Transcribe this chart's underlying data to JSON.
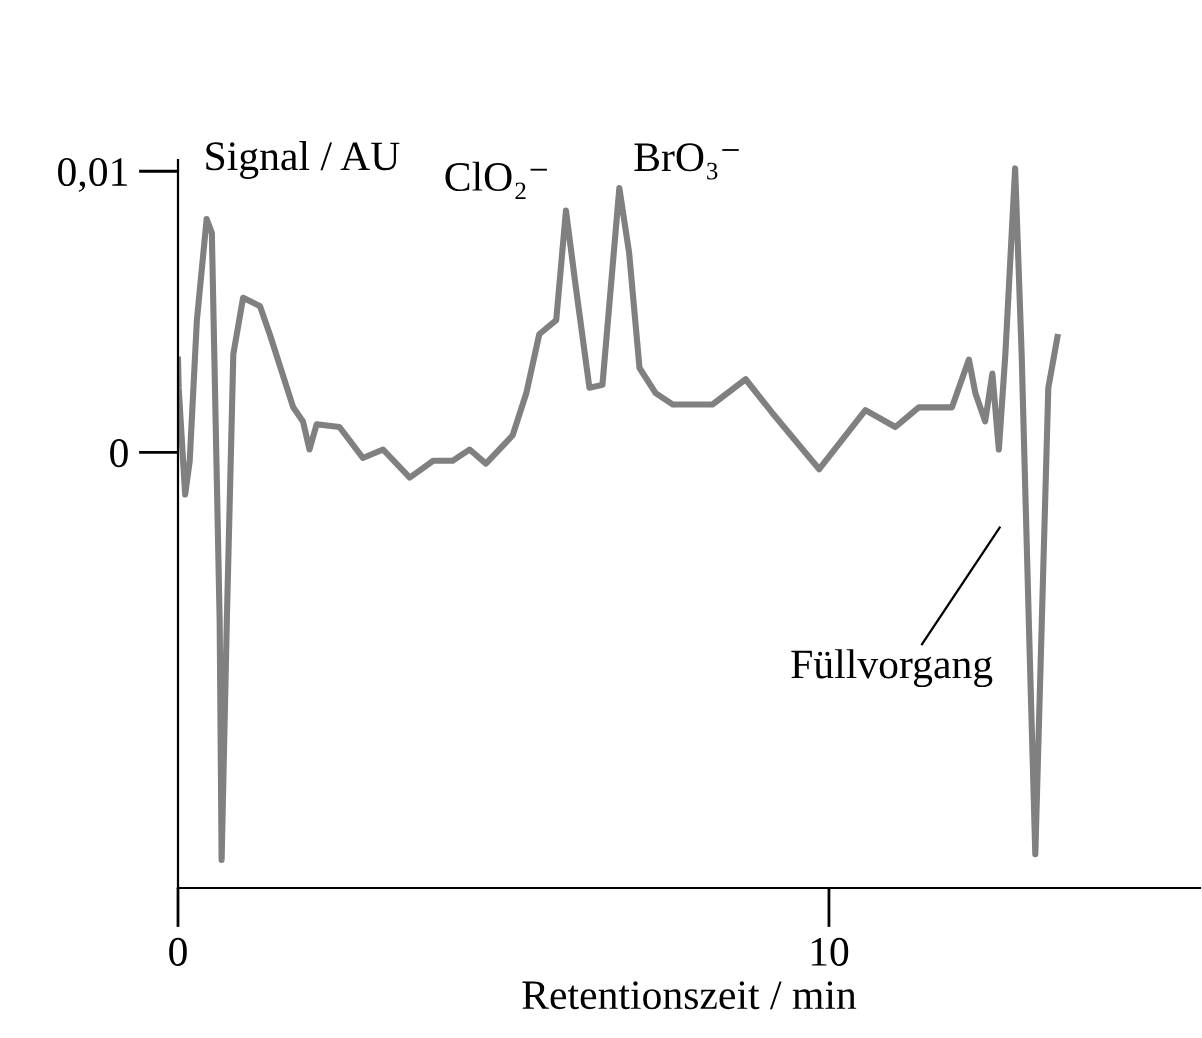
{
  "chart_data": {
    "type": "line",
    "xlabel": "Retentionszeit / min",
    "ylabel": "Signal / AU",
    "color": "#808080",
    "x": [
      0.0,
      0.01,
      0.11,
      0.18,
      0.29,
      0.44,
      0.52,
      0.64,
      0.67,
      0.75,
      0.85,
      1.0,
      1.26,
      1.41,
      1.77,
      1.92,
      2.02,
      2.13,
      2.48,
      2.84,
      3.15,
      3.56,
      3.92,
      4.22,
      4.48,
      4.73,
      5.14,
      5.35,
      5.55,
      5.81,
      5.96,
      6.11,
      6.32,
      6.52,
      6.78,
      6.93,
      7.09,
      7.34,
      7.6,
      8.21,
      8.72,
      9.13,
      9.85,
      10.56,
      11.02,
      11.38,
      11.89,
      12.15,
      12.25,
      12.4,
      12.51,
      12.61,
      12.71,
      12.86,
      12.96,
      13.07,
      13.17,
      13.27,
      13.37,
      13.51
    ],
    "values": [
      0.0033,
      0.0023,
      -0.0015,
      -0.0003,
      0.0047,
      0.0083,
      0.0078,
      -0.006,
      -0.0145,
      -0.006,
      0.0035,
      0.0055,
      0.0052,
      0.0042,
      0.0016,
      0.0011,
      0.0001,
      0.001,
      0.0009,
      -0.0002,
      0.0001,
      -0.0009,
      -0.0003,
      -0.0003,
      0.0001,
      -0.0004,
      0.0006,
      0.0021,
      0.0042,
      0.0047,
      0.0086,
      0.0059,
      0.0023,
      0.0024,
      0.0094,
      0.0071,
      0.003,
      0.0021,
      0.0017,
      0.0017,
      0.0026,
      0.0014,
      -0.0006,
      0.0015,
      0.0009,
      0.0016,
      0.0016,
      0.0033,
      0.0021,
      0.0011,
      0.0028,
      0.0001,
      0.0035,
      0.0101,
      0.0035,
      -0.006,
      -0.0143,
      -0.006,
      0.0023,
      0.0041
    ],
    "xlim": [
      0,
      15.7
    ],
    "ylim": [
      -0.0155,
      0.0104
    ],
    "xticks": [
      0,
      10
    ],
    "yticks": [
      0,
      {
        "value": 0.01,
        "label": "0,01"
      }
    ],
    "annotations": [
      {
        "text": "ClO₂⁻",
        "x": 5.96,
        "y": 0.0086
      },
      {
        "text": "BrO₃⁻",
        "x": 6.78,
        "y": 0.0094
      },
      "Füllvorgang"
    ]
  }
}
